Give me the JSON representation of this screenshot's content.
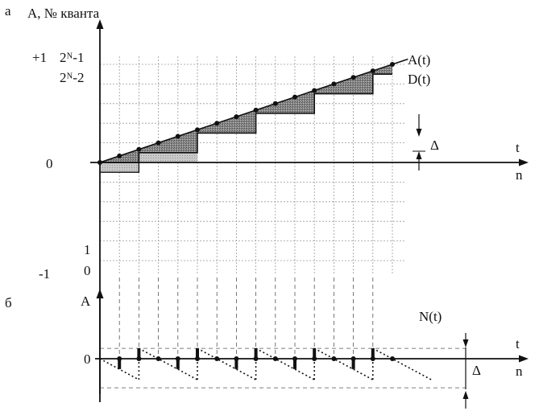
{
  "panel_a": {
    "letter": "а",
    "y_axis_title": "A, № кванта",
    "tick_plus1": "+1",
    "tick_top_quantum": "2ᴺ-1",
    "tick_second_quantum": "2ᴺ-2",
    "tick_zero": "0",
    "tick_one": "1",
    "tick_zero_low": "0",
    "tick_minus1": "-1",
    "x_axis_t": "t",
    "x_axis_n": "n",
    "curve_analog": "A(t)",
    "curve_digital": "D(t)",
    "step_size": "Δ"
  },
  "panel_b": {
    "letter": "б",
    "y_axis_title": "A",
    "tick_zero": "0",
    "curve_error": "N(t)",
    "x_axis_t": "t",
    "x_axis_n": "n",
    "step_size": "Δ"
  },
  "chart_data": {
    "type": "line",
    "panel_a": {
      "series": [
        {
          "name": "A(t)",
          "x": [
            0,
            15
          ],
          "y": [
            0,
            5
          ]
        },
        {
          "name": "D(t)",
          "x": [
            0,
            2,
            2,
            5,
            5,
            8,
            8,
            11,
            11,
            14,
            14,
            15
          ],
          "y": [
            0,
            0,
            0.5,
            0.5,
            1.5,
            1.5,
            2.5,
            2.5,
            3.5,
            3.5,
            4.5,
            4.5
          ]
        }
      ],
      "sample_points_n": [
        0,
        1,
        2,
        3,
        4,
        5,
        6,
        7,
        8,
        9,
        10,
        11,
        12,
        13,
        14,
        15
      ]
    },
    "panel_b": {
      "series": [
        {
          "name": "N(t)",
          "x": [
            0,
            2,
            2,
            5,
            5,
            8,
            8,
            11,
            11,
            14,
            14,
            17
          ],
          "y": [
            0,
            -0.67,
            0.33,
            -0.67,
            0.33,
            -0.67,
            0.33,
            -0.67,
            0.33,
            -0.67,
            0.33,
            -0.67
          ]
        }
      ]
    },
    "colors": {
      "fill": "#7a7a7a",
      "line": "#111111",
      "grid": "#9a9a9a"
    }
  }
}
